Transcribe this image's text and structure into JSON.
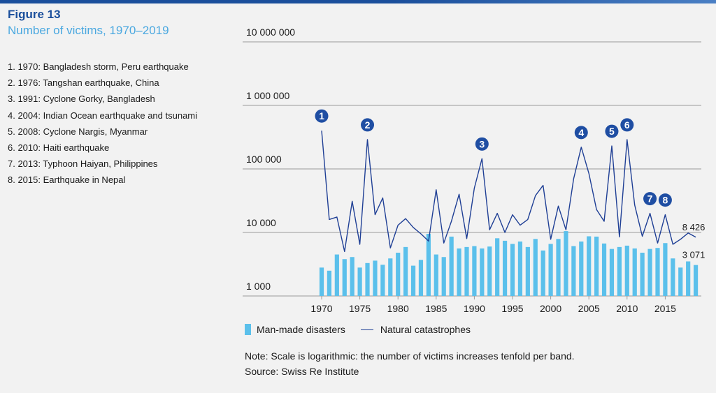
{
  "header": {
    "figure_label": "Figure 13",
    "title": "Number of victims, 1970–2019"
  },
  "events": [
    "1. 1970: Bangladesh storm, Peru earthquake",
    "2. 1976: Tangshan earthquake, China",
    "3. 1991: Cyclone Gorky, Bangladesh",
    "4. 2004: Indian Ocean earthquake and tsunami",
    "5. 2008: Cyclone Nargis, Myanmar",
    "6. 2010: Haiti earthquake",
    "7. 2013: Typhoon Haiyan, Philippines",
    "8. 2015: Earthquake in Nepal"
  ],
  "legend": {
    "bars": "Man-made disasters",
    "line": "Natural catastrophes"
  },
  "note": "Note: Scale is logarithmic: the number of victims increases tenfold per band.",
  "source": "Source: Swiss Re Institute",
  "colors": {
    "bars": "#5bc0eb",
    "line": "#1f3f95",
    "marker": "#1f4ea3",
    "accent_title": "#4aa8e0",
    "accent_label": "#1b4f9c"
  },
  "chart_data": {
    "type": "bar",
    "scale": "log",
    "ylim": [
      1000,
      10000000
    ],
    "y_ticks": [
      {
        "value": 10000000,
        "label": "10 000 000"
      },
      {
        "value": 1000000,
        "label": "1 000 000"
      },
      {
        "value": 100000,
        "label": "100 000"
      },
      {
        "value": 10000,
        "label": "10 000"
      },
      {
        "value": 1000,
        "label": "1 000"
      }
    ],
    "x_ticks": [
      1970,
      1975,
      1980,
      1985,
      1990,
      1995,
      2000,
      2005,
      2010,
      2015
    ],
    "x": [
      1970,
      1971,
      1972,
      1973,
      1974,
      1975,
      1976,
      1977,
      1978,
      1979,
      1980,
      1981,
      1982,
      1983,
      1984,
      1985,
      1986,
      1987,
      1988,
      1989,
      1990,
      1991,
      1992,
      1993,
      1994,
      1995,
      1996,
      1997,
      1998,
      1999,
      2000,
      2001,
      2002,
      2003,
      2004,
      2005,
      2006,
      2007,
      2008,
      2009,
      2010,
      2011,
      2012,
      2013,
      2014,
      2015,
      2016,
      2017,
      2018,
      2019
    ],
    "series": [
      {
        "name": "Man-made disasters",
        "type": "bar",
        "values": [
          2800,
          2500,
          4500,
          3800,
          4100,
          2800,
          3300,
          3600,
          3100,
          3900,
          4800,
          5900,
          3000,
          3700,
          9500,
          4500,
          4100,
          8600,
          5600,
          5900,
          6100,
          5600,
          6000,
          8100,
          7400,
          6600,
          7200,
          5900,
          7900,
          5200,
          6600,
          7900,
          10500,
          6100,
          7200,
          8700,
          8600,
          6700,
          5500,
          5900,
          6200,
          5600,
          4800,
          5500,
          5700,
          6800,
          3900,
          2800,
          3500,
          3071
        ]
      },
      {
        "name": "Natural catastrophes",
        "type": "line",
        "values": [
          400000,
          16000,
          17500,
          5000,
          31000,
          6500,
          290000,
          19000,
          35000,
          5700,
          13000,
          16500,
          12000,
          9500,
          7300,
          47000,
          6800,
          15000,
          40000,
          8000,
          50000,
          145000,
          11000,
          20000,
          10000,
          19000,
          13000,
          16000,
          38000,
          55000,
          7800,
          26000,
          11000,
          70000,
          220000,
          85000,
          23000,
          15000,
          230000,
          8500,
          290000,
          27000,
          8700,
          20000,
          6800,
          19000,
          6500,
          7800,
          9800,
          8426
        ]
      }
    ],
    "markers": [
      {
        "label": "1",
        "year": 1970
      },
      {
        "label": "2",
        "year": 1976
      },
      {
        "label": "3",
        "year": 1991
      },
      {
        "label": "4",
        "year": 2004
      },
      {
        "label": "5",
        "year": 2008
      },
      {
        "label": "6",
        "year": 2010
      },
      {
        "label": "7",
        "year": 2013
      },
      {
        "label": "8",
        "year": 2015
      }
    ],
    "data_labels": [
      {
        "series": "Natural catastrophes",
        "year": 2019,
        "text": "8 426"
      },
      {
        "series": "Man-made disasters",
        "year": 2019,
        "text": "3 071"
      }
    ]
  }
}
